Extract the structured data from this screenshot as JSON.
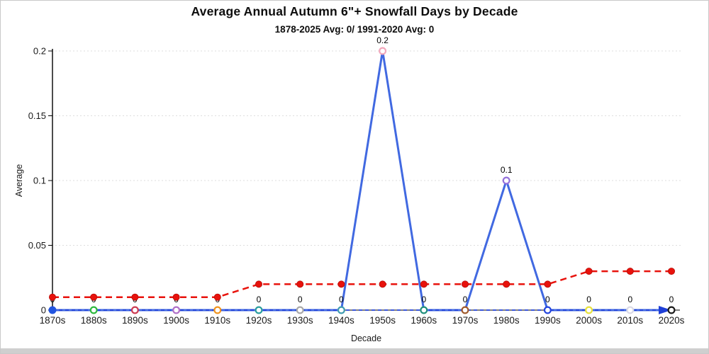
{
  "window": {
    "scrollbar": "horizontal-scrollbar"
  },
  "chart_data": {
    "type": "line",
    "title": "Average Annual Autumn 6\"+ Snowfall Days by Decade",
    "subtitle": "1878-2025 Avg: 0/ 1991-2020 Avg: 0",
    "xlabel": "Decade",
    "ylabel": "Average",
    "ylim": [
      0,
      0.2
    ],
    "yticks": [
      0,
      0.05,
      0.1,
      0.15,
      0.2
    ],
    "ytick_labels": [
      "0",
      "0.05",
      "0.1",
      "0.15",
      "0.2"
    ],
    "grid": "horizontal-dotted",
    "legend_position": "none",
    "categories": [
      "1870s",
      "1880s",
      "1890s",
      "1900s",
      "1910s",
      "1920s",
      "1930s",
      "1940s",
      "1950s",
      "1960s",
      "1970s",
      "1980s",
      "1990s",
      "2000s",
      "2010s",
      "2020s"
    ],
    "series": [
      {
        "name": "decade-average",
        "style": "solid",
        "color": "#4169e1",
        "line_width": 3,
        "values": [
          0,
          0,
          0,
          0,
          0,
          0,
          0,
          0,
          0.2,
          0,
          0,
          0.1,
          0,
          0,
          0,
          0
        ],
        "data_labels": [
          "0",
          "0",
          "0",
          "0",
          "0",
          "0",
          "0",
          "0",
          "0.2",
          "0",
          "0",
          "0.1",
          "0",
          "0",
          "0",
          "0"
        ],
        "label_color": "#000000",
        "point_colors": [
          "#2255e0",
          "#2db83d",
          "#cc3b52",
          "#b06fc8",
          "#f0941f",
          "#2a9d9d",
          "#a8a8a8",
          "#3f9bb0",
          "#f2a7bb",
          "#1f8f7c",
          "#a05a2c",
          "#9370db",
          "#2244dd",
          "#e6e13c",
          "#d9d9e6",
          "#1a1a1a"
        ],
        "point_filled": [
          true,
          false,
          false,
          false,
          false,
          false,
          false,
          false,
          false,
          false,
          false,
          false,
          false,
          false,
          false,
          false
        ]
      },
      {
        "name": "trend-average",
        "style": "dashed",
        "color": "#e8120c",
        "line_width": 2.5,
        "values": [
          0.01,
          0.01,
          0.01,
          0.01,
          0.01,
          0.02,
          0.02,
          0.02,
          0.02,
          0.02,
          0.02,
          0.02,
          0.02,
          0.03,
          0.03,
          0.03
        ],
        "data_labels": null,
        "point_colors": null,
        "point_filled": null
      }
    ],
    "arrow_line": {
      "name": "zero-trend-arrow",
      "style": "dashed",
      "color": "#1f3fd6",
      "y_value": 0
    },
    "axis_color": "#000000",
    "grid_color": "#dedede",
    "tick_label_color": "#1a1a1a"
  }
}
